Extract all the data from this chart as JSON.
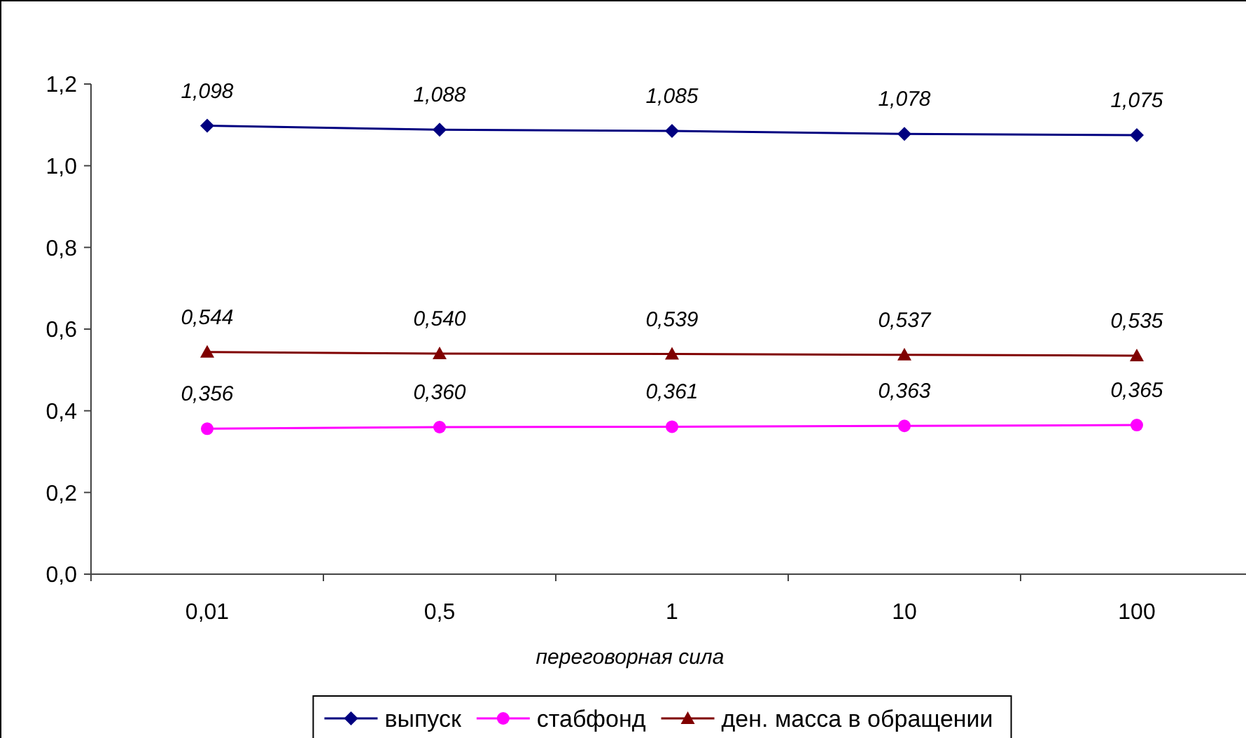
{
  "chart_data": {
    "type": "line",
    "xlabel": "переговорная сила",
    "categories": [
      "0,01",
      "0,5",
      "1",
      "10",
      "100"
    ],
    "series": [
      {
        "name": "выпуск",
        "color": "#000080",
        "marker": "diamond",
        "values": [
          1.098,
          1.088,
          1.085,
          1.078,
          1.075
        ],
        "value_labels": [
          "1,098",
          "1,088",
          "1,085",
          "1,078",
          "1,075"
        ]
      },
      {
        "name": "стабфонд",
        "color": "#ff00ff",
        "marker": "circle",
        "values": [
          0.356,
          0.36,
          0.361,
          0.363,
          0.365
        ],
        "value_labels": [
          "0,356",
          "0,360",
          "0,361",
          "0,363",
          "0,365"
        ]
      },
      {
        "name": "ден. масса в обращении",
        "color": "#800000",
        "marker": "triangle",
        "values": [
          0.544,
          0.54,
          0.539,
          0.537,
          0.535
        ],
        "value_labels": [
          "0,544",
          "0,540",
          "0,539",
          "0,537",
          "0,535"
        ]
      }
    ],
    "ylim": [
      0,
      1.2
    ],
    "yticks": [
      {
        "value": 0,
        "label": "0,0"
      },
      {
        "value": 0.2,
        "label": "0,2"
      },
      {
        "value": 0.4,
        "label": "0,4"
      },
      {
        "value": 0.6,
        "label": "0,6"
      },
      {
        "value": 0.8,
        "label": "0,8"
      },
      {
        "value": 1.0,
        "label": "1,0"
      },
      {
        "value": 1.2,
        "label": "1,2"
      }
    ],
    "legend": "bottom",
    "grid": false,
    "line_style": "solid"
  }
}
